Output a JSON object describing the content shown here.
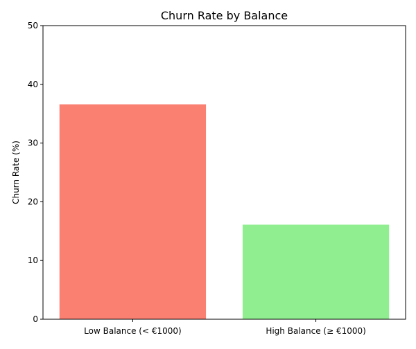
{
  "chart_data": {
    "type": "bar",
    "title": "Churn Rate by Balance",
    "xlabel": "",
    "ylabel": "Churn Rate (%)",
    "categories": [
      "Low Balance (< €1000)",
      "High Balance (≥ €1000)"
    ],
    "values": [
      36.6,
      16.1
    ],
    "colors": [
      "#fa8072",
      "#90ee90"
    ],
    "ylim": [
      0,
      50
    ],
    "yticks": [
      0,
      10,
      20,
      30,
      40,
      50
    ],
    "grid": false,
    "legend": "none"
  }
}
